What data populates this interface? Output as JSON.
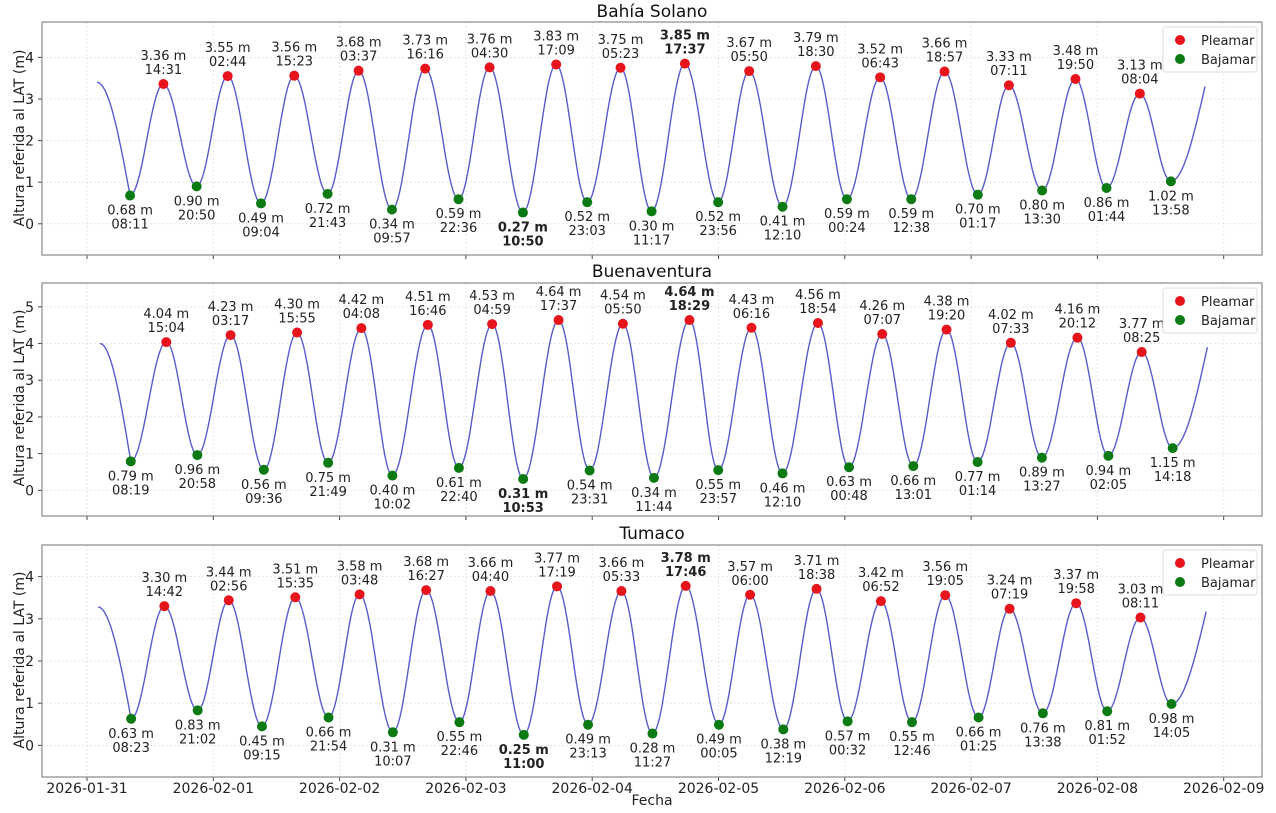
{
  "figure": {
    "xlabel": "Fecha",
    "ylabel": "Altura referida al LAT (m)",
    "legend": {
      "high_label": "Pleamar",
      "low_label": "Bajamar"
    },
    "colors": {
      "curve": "#3b3fc0",
      "high": "#e8141c",
      "low": "#0b7a12",
      "grid": "#e6e6e6",
      "axes": "#888888"
    },
    "x_ticks": [
      "2026-01-31",
      "2026-02-01",
      "2026-02-02",
      "2026-02-03",
      "2026-02-04",
      "2026-02-05",
      "2026-02-06",
      "2026-02-07",
      "2026-02-08",
      "2026-02-09"
    ]
  },
  "chart_data": [
    {
      "type": "line",
      "title": "Bahía Solano",
      "xlabel": "Fecha",
      "ylabel": "Altura referida al LAT (m)",
      "ylim": [
        -0.75,
        4.85
      ],
      "yticks": [
        0,
        1,
        2,
        3,
        4
      ],
      "grid": true,
      "legend_position": "upper right",
      "curve_start": {
        "t": "2026-01-31 01:54",
        "h": 3.4
      },
      "curve_end": {
        "t": "2026-02-08 20:27",
        "h": 3.3
      },
      "extremes": [
        {
          "type": "low",
          "date": "2026-01-31",
          "time": "08:11",
          "h": 0.68
        },
        {
          "type": "high",
          "date": "2026-01-31",
          "time": "14:31",
          "h": 3.36
        },
        {
          "type": "low",
          "date": "2026-01-31",
          "time": "20:50",
          "h": 0.9
        },
        {
          "type": "high",
          "date": "2026-02-01",
          "time": "02:44",
          "h": 3.55
        },
        {
          "type": "low",
          "date": "2026-02-01",
          "time": "09:04",
          "h": 0.49
        },
        {
          "type": "high",
          "date": "2026-02-01",
          "time": "15:23",
          "h": 3.56
        },
        {
          "type": "low",
          "date": "2026-02-01",
          "time": "21:43",
          "h": 0.72
        },
        {
          "type": "high",
          "date": "2026-02-02",
          "time": "03:37",
          "h": 3.68
        },
        {
          "type": "low",
          "date": "2026-02-02",
          "time": "09:57",
          "h": 0.34
        },
        {
          "type": "high",
          "date": "2026-02-02",
          "time": "16:16",
          "h": 3.73
        },
        {
          "type": "low",
          "date": "2026-02-02",
          "time": "22:36",
          "h": 0.59
        },
        {
          "type": "high",
          "date": "2026-02-03",
          "time": "04:30",
          "h": 3.76
        },
        {
          "type": "low",
          "date": "2026-02-03",
          "time": "10:50",
          "h": 0.27,
          "bold": true
        },
        {
          "type": "high",
          "date": "2026-02-03",
          "time": "17:09",
          "h": 3.83
        },
        {
          "type": "low",
          "date": "2026-02-03",
          "time": "23:03",
          "h": 0.52
        },
        {
          "type": "high",
          "date": "2026-02-04",
          "time": "05:23",
          "h": 3.75
        },
        {
          "type": "low",
          "date": "2026-02-04",
          "time": "11:17",
          "h": 0.3
        },
        {
          "type": "high",
          "date": "2026-02-04",
          "time": "17:37",
          "h": 3.85,
          "bold": true
        },
        {
          "type": "low",
          "date": "2026-02-04",
          "time": "23:56",
          "h": 0.52
        },
        {
          "type": "high",
          "date": "2026-02-05",
          "time": "05:50",
          "h": 3.67
        },
        {
          "type": "low",
          "date": "2026-02-05",
          "time": "12:10",
          "h": 0.41
        },
        {
          "type": "high",
          "date": "2026-02-05",
          "time": "18:30",
          "h": 3.79
        },
        {
          "type": "low",
          "date": "2026-02-06",
          "time": "00:24",
          "h": 0.59
        },
        {
          "type": "high",
          "date": "2026-02-06",
          "time": "06:43",
          "h": 3.52
        },
        {
          "type": "low",
          "date": "2026-02-06",
          "time": "12:38",
          "h": 0.59
        },
        {
          "type": "high",
          "date": "2026-02-06",
          "time": "18:57",
          "h": 3.66
        },
        {
          "type": "low",
          "date": "2026-02-07",
          "time": "01:17",
          "h": 0.7
        },
        {
          "type": "high",
          "date": "2026-02-07",
          "time": "07:11",
          "h": 3.33
        },
        {
          "type": "low",
          "date": "2026-02-07",
          "time": "13:30",
          "h": 0.8
        },
        {
          "type": "high",
          "date": "2026-02-07",
          "time": "19:50",
          "h": 3.48
        },
        {
          "type": "low",
          "date": "2026-02-08",
          "time": "01:44",
          "h": 0.86
        },
        {
          "type": "high",
          "date": "2026-02-08",
          "time": "08:04",
          "h": 3.13
        },
        {
          "type": "low",
          "date": "2026-02-08",
          "time": "13:58",
          "h": 1.02
        }
      ]
    },
    {
      "type": "line",
      "title": "Buenaventura",
      "xlabel": "Fecha",
      "ylabel": "Altura referida al LAT (m)",
      "ylim": [
        -0.7,
        5.65
      ],
      "yticks": [
        0,
        1,
        2,
        3,
        4,
        5
      ],
      "grid": true,
      "legend_position": "upper right",
      "curve_start": {
        "t": "2026-01-31 02:29",
        "h": 4.0
      },
      "curve_end": {
        "t": "2026-02-08 20:54",
        "h": 3.9
      },
      "extremes": [
        {
          "type": "low",
          "date": "2026-01-31",
          "time": "08:19",
          "h": 0.79
        },
        {
          "type": "high",
          "date": "2026-01-31",
          "time": "15:04",
          "h": 4.04
        },
        {
          "type": "low",
          "date": "2026-01-31",
          "time": "20:58",
          "h": 0.96
        },
        {
          "type": "high",
          "date": "2026-02-01",
          "time": "03:17",
          "h": 4.23
        },
        {
          "type": "low",
          "date": "2026-02-01",
          "time": "09:36",
          "h": 0.56
        },
        {
          "type": "high",
          "date": "2026-02-01",
          "time": "15:55",
          "h": 4.3
        },
        {
          "type": "low",
          "date": "2026-02-01",
          "time": "21:49",
          "h": 0.75
        },
        {
          "type": "high",
          "date": "2026-02-02",
          "time": "04:08",
          "h": 4.42
        },
        {
          "type": "low",
          "date": "2026-02-02",
          "time": "10:02",
          "h": 0.4
        },
        {
          "type": "high",
          "date": "2026-02-02",
          "time": "16:46",
          "h": 4.51
        },
        {
          "type": "low",
          "date": "2026-02-02",
          "time": "22:40",
          "h": 0.61
        },
        {
          "type": "high",
          "date": "2026-02-03",
          "time": "04:59",
          "h": 4.53
        },
        {
          "type": "low",
          "date": "2026-02-03",
          "time": "10:53",
          "h": 0.31,
          "bold": true
        },
        {
          "type": "high",
          "date": "2026-02-03",
          "time": "17:37",
          "h": 4.64
        },
        {
          "type": "low",
          "date": "2026-02-03",
          "time": "23:31",
          "h": 0.54
        },
        {
          "type": "high",
          "date": "2026-02-04",
          "time": "05:50",
          "h": 4.54
        },
        {
          "type": "low",
          "date": "2026-02-04",
          "time": "11:44",
          "h": 0.34
        },
        {
          "type": "high",
          "date": "2026-02-04",
          "time": "18:29",
          "h": 4.64,
          "bold": true
        },
        {
          "type": "low",
          "date": "2026-02-04",
          "time": "23:57",
          "h": 0.55
        },
        {
          "type": "high",
          "date": "2026-02-05",
          "time": "06:16",
          "h": 4.43
        },
        {
          "type": "low",
          "date": "2026-02-05",
          "time": "12:10",
          "h": 0.46
        },
        {
          "type": "high",
          "date": "2026-02-05",
          "time": "18:54",
          "h": 4.56
        },
        {
          "type": "low",
          "date": "2026-02-06",
          "time": "00:48",
          "h": 0.63
        },
        {
          "type": "high",
          "date": "2026-02-06",
          "time": "07:07",
          "h": 4.26
        },
        {
          "type": "low",
          "date": "2026-02-06",
          "time": "13:01",
          "h": 0.66
        },
        {
          "type": "high",
          "date": "2026-02-06",
          "time": "19:20",
          "h": 4.38
        },
        {
          "type": "low",
          "date": "2026-02-07",
          "time": "01:14",
          "h": 0.77
        },
        {
          "type": "high",
          "date": "2026-02-07",
          "time": "07:33",
          "h": 4.02
        },
        {
          "type": "low",
          "date": "2026-02-07",
          "time": "13:27",
          "h": 0.89
        },
        {
          "type": "high",
          "date": "2026-02-07",
          "time": "20:12",
          "h": 4.16
        },
        {
          "type": "low",
          "date": "2026-02-08",
          "time": "02:05",
          "h": 0.94
        },
        {
          "type": "high",
          "date": "2026-02-08",
          "time": "08:25",
          "h": 3.77
        },
        {
          "type": "low",
          "date": "2026-02-08",
          "time": "14:18",
          "h": 1.15
        }
      ]
    },
    {
      "type": "line",
      "title": "Tumaco",
      "xlabel": "Fecha",
      "ylabel": "Altura referida al LAT (m)",
      "ylim": [
        -0.75,
        4.75
      ],
      "yticks": [
        0,
        1,
        2,
        3,
        4
      ],
      "grid": true,
      "legend_position": "upper right",
      "curve_start": {
        "t": "2026-01-31 02:06",
        "h": 3.28
      },
      "curve_end": {
        "t": "2026-02-08 20:40",
        "h": 3.17
      },
      "extremes": [
        {
          "type": "low",
          "date": "2026-01-31",
          "time": "08:23",
          "h": 0.63
        },
        {
          "type": "high",
          "date": "2026-01-31",
          "time": "14:42",
          "h": 3.3
        },
        {
          "type": "low",
          "date": "2026-01-31",
          "time": "21:02",
          "h": 0.83
        },
        {
          "type": "high",
          "date": "2026-02-01",
          "time": "02:56",
          "h": 3.44
        },
        {
          "type": "low",
          "date": "2026-02-01",
          "time": "09:15",
          "h": 0.45
        },
        {
          "type": "high",
          "date": "2026-02-01",
          "time": "15:35",
          "h": 3.51
        },
        {
          "type": "low",
          "date": "2026-02-01",
          "time": "21:54",
          "h": 0.66
        },
        {
          "type": "high",
          "date": "2026-02-02",
          "time": "03:48",
          "h": 3.58
        },
        {
          "type": "low",
          "date": "2026-02-02",
          "time": "10:07",
          "h": 0.31
        },
        {
          "type": "high",
          "date": "2026-02-02",
          "time": "16:27",
          "h": 3.68
        },
        {
          "type": "low",
          "date": "2026-02-02",
          "time": "22:46",
          "h": 0.55
        },
        {
          "type": "high",
          "date": "2026-02-03",
          "time": "04:40",
          "h": 3.66
        },
        {
          "type": "low",
          "date": "2026-02-03",
          "time": "11:00",
          "h": 0.25,
          "bold": true
        },
        {
          "type": "high",
          "date": "2026-02-03",
          "time": "17:19",
          "h": 3.77
        },
        {
          "type": "low",
          "date": "2026-02-03",
          "time": "23:13",
          "h": 0.49
        },
        {
          "type": "high",
          "date": "2026-02-04",
          "time": "05:33",
          "h": 3.66
        },
        {
          "type": "low",
          "date": "2026-02-04",
          "time": "11:27",
          "h": 0.28
        },
        {
          "type": "high",
          "date": "2026-02-04",
          "time": "17:46",
          "h": 3.78,
          "bold": true
        },
        {
          "type": "low",
          "date": "2026-02-05",
          "time": "00:05",
          "h": 0.49
        },
        {
          "type": "high",
          "date": "2026-02-05",
          "time": "06:00",
          "h": 3.57
        },
        {
          "type": "low",
          "date": "2026-02-05",
          "time": "12:19",
          "h": 0.38
        },
        {
          "type": "high",
          "date": "2026-02-05",
          "time": "18:38",
          "h": 3.71
        },
        {
          "type": "low",
          "date": "2026-02-06",
          "time": "00:32",
          "h": 0.57
        },
        {
          "type": "high",
          "date": "2026-02-06",
          "time": "06:52",
          "h": 3.42
        },
        {
          "type": "low",
          "date": "2026-02-06",
          "time": "12:46",
          "h": 0.55
        },
        {
          "type": "high",
          "date": "2026-02-06",
          "time": "19:05",
          "h": 3.56
        },
        {
          "type": "low",
          "date": "2026-02-07",
          "time": "01:25",
          "h": 0.66
        },
        {
          "type": "high",
          "date": "2026-02-07",
          "time": "07:19",
          "h": 3.24
        },
        {
          "type": "low",
          "date": "2026-02-07",
          "time": "13:38",
          "h": 0.76
        },
        {
          "type": "high",
          "date": "2026-02-07",
          "time": "19:58",
          "h": 3.37
        },
        {
          "type": "low",
          "date": "2026-02-08",
          "time": "01:52",
          "h": 0.81
        },
        {
          "type": "high",
          "date": "2026-02-08",
          "time": "08:11",
          "h": 3.03
        },
        {
          "type": "low",
          "date": "2026-02-08",
          "time": "14:05",
          "h": 0.98
        }
      ]
    }
  ]
}
